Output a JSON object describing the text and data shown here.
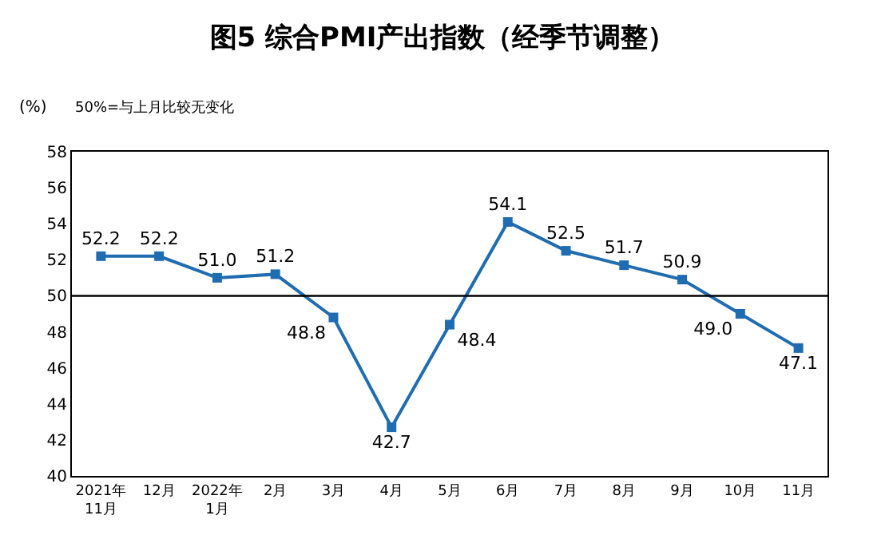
{
  "chart_data": {
    "type": "line",
    "title": "图5 综合PMI产出指数（经季节调整）",
    "ylabel": "(%)",
    "annotations": [
      "50%=与上月比较无变化"
    ],
    "categories": [
      "2021年\n11月",
      "12月",
      "2022年\n1月",
      "2月",
      "3月",
      "4月",
      "5月",
      "6月",
      "7月",
      "8月",
      "9月",
      "10月",
      "11月"
    ],
    "series": [
      {
        "color": "#1f6cb0",
        "values": [
          52.2,
          52.2,
          51.0,
          51.2,
          48.8,
          42.7,
          48.4,
          54.1,
          52.5,
          51.7,
          50.9,
          49.0,
          47.1
        ]
      }
    ],
    "value_labels": [
      "52.2",
      "52.2",
      "51.0",
      "51.2",
      "48.8",
      "42.7",
      "48.4",
      "54.1",
      "52.5",
      "51.7",
      "50.9",
      "49.0",
      "47.1"
    ],
    "ylim": [
      40,
      58
    ],
    "yticks": [
      40,
      42,
      44,
      46,
      48,
      50,
      52,
      54,
      56,
      58
    ],
    "ref_lines": [
      {
        "axis": "y",
        "value": 50,
        "color": "#000000"
      }
    ],
    "marker": "square",
    "line_style": "solid"
  }
}
